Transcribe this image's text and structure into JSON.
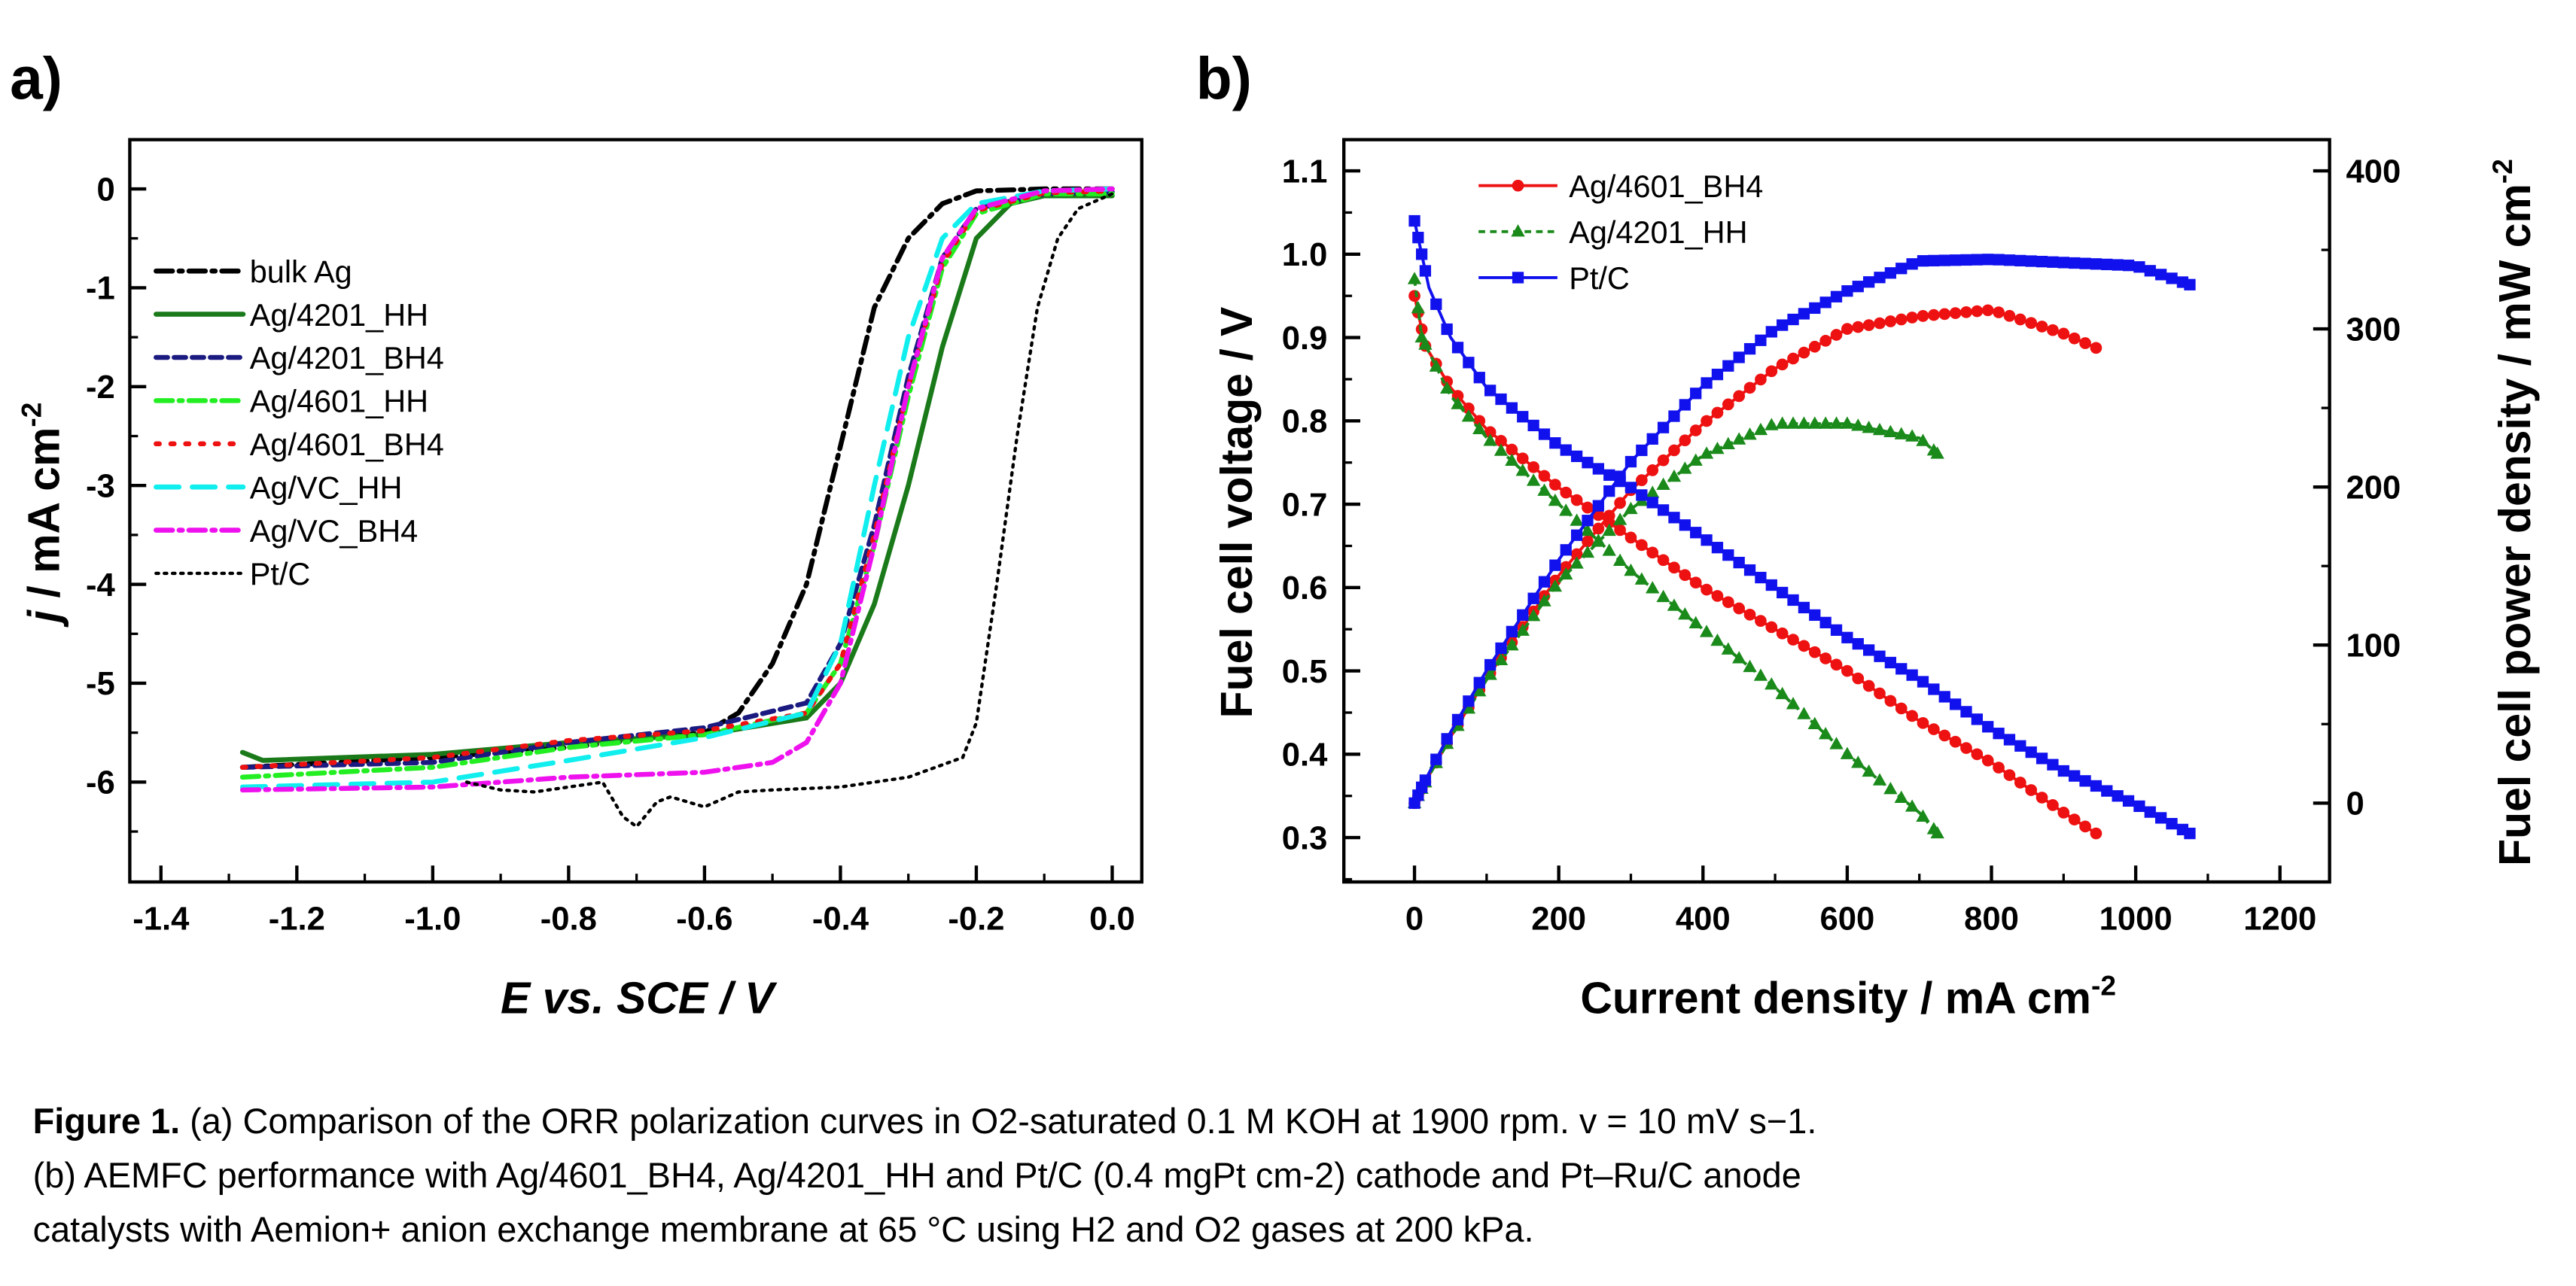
{
  "panels": {
    "a_label": "a)",
    "b_label": "b)"
  },
  "caption": {
    "fig_label": "Figure 1.",
    "line1": " (a) Comparison of the ORR polarization curves in O2-saturated 0.1 M KOH at 1900 rpm. v = 10 mV s−1.",
    "line2": "(b) AEMFC performance with Ag/4601_BH4, Ag/4201_HH and Pt/C (0.4 mgPt cm-2) cathode and Pt–Ru/C anode",
    "line3": "catalysts with Aemion+ anion exchange membrane at 65 °C using H2 and O2 gases at 200 kPa."
  },
  "chart_data": [
    {
      "type": "line",
      "panel": "a)",
      "xlabel": {
        "main": "E vs. SCE / V"
      },
      "ylabel": {
        "symbol": "j",
        "main": " / mA cm",
        "sup": "-2"
      },
      "xlim": [
        -1.45,
        0.04
      ],
      "ylim": [
        -7,
        0.5
      ],
      "xticks": [
        "-1.4",
        "-1.2",
        "-1.0",
        "-0.8",
        "-0.6",
        "-0.4",
        "-0.2",
        "0.0"
      ],
      "yticks": [
        "0",
        "-1",
        "-2",
        "-3",
        "-4",
        "-5",
        "-6"
      ],
      "legend_position": "left",
      "grid": false,
      "series": [
        {
          "name": "bulk Ag",
          "color": "#000000",
          "style": "dash-dot",
          "points": [
            [
              -1.28,
              -5.85
            ],
            [
              -1.0,
              -5.75
            ],
            [
              -0.8,
              -5.65
            ],
            [
              -0.6,
              -5.5
            ],
            [
              -0.55,
              -5.3
            ],
            [
              -0.5,
              -4.8
            ],
            [
              -0.45,
              -4.0
            ],
            [
              -0.4,
              -2.6
            ],
            [
              -0.35,
              -1.2
            ],
            [
              -0.3,
              -0.5
            ],
            [
              -0.25,
              -0.15
            ],
            [
              -0.2,
              -0.02
            ],
            [
              -0.1,
              0
            ],
            [
              0,
              0
            ]
          ]
        },
        {
          "name": "Ag/4201_HH",
          "color": "#1a7a1a",
          "style": "solid",
          "points": [
            [
              -1.28,
              -5.7
            ],
            [
              -1.25,
              -5.78
            ],
            [
              -1.0,
              -5.72
            ],
            [
              -0.8,
              -5.6
            ],
            [
              -0.6,
              -5.52
            ],
            [
              -0.45,
              -5.35
            ],
            [
              -0.4,
              -5.0
            ],
            [
              -0.35,
              -4.2
            ],
            [
              -0.3,
              -3.0
            ],
            [
              -0.25,
              -1.6
            ],
            [
              -0.2,
              -0.5
            ],
            [
              -0.15,
              -0.15
            ],
            [
              -0.1,
              -0.07
            ],
            [
              0,
              -0.07
            ]
          ]
        },
        {
          "name": "Ag/4201_BH4",
          "color": "#1a1a80",
          "style": "dash",
          "points": [
            [
              -1.28,
              -5.85
            ],
            [
              -1.0,
              -5.8
            ],
            [
              -0.8,
              -5.6
            ],
            [
              -0.6,
              -5.45
            ],
            [
              -0.45,
              -5.2
            ],
            [
              -0.4,
              -4.6
            ],
            [
              -0.35,
              -3.4
            ],
            [
              -0.3,
              -1.9
            ],
            [
              -0.25,
              -0.7
            ],
            [
              -0.2,
              -0.2
            ],
            [
              -0.1,
              -0.05
            ],
            [
              0,
              -0.03
            ]
          ]
        },
        {
          "name": "Ag/4601_HH",
          "color": "#22ee22",
          "style": "dash-dot",
          "points": [
            [
              -1.28,
              -5.95
            ],
            [
              -1.0,
              -5.85
            ],
            [
              -0.8,
              -5.65
            ],
            [
              -0.6,
              -5.52
            ],
            [
              -0.45,
              -5.3
            ],
            [
              -0.4,
              -4.8
            ],
            [
              -0.35,
              -3.6
            ],
            [
              -0.3,
              -2.1
            ],
            [
              -0.25,
              -0.8
            ],
            [
              -0.2,
              -0.25
            ],
            [
              -0.1,
              -0.05
            ],
            [
              0,
              -0.05
            ]
          ]
        },
        {
          "name": "Ag/4601_BH4",
          "color": "#ee1111",
          "style": "dot",
          "points": [
            [
              -1.28,
              -5.85
            ],
            [
              -1.0,
              -5.75
            ],
            [
              -0.8,
              -5.58
            ],
            [
              -0.6,
              -5.48
            ],
            [
              -0.45,
              -5.3
            ],
            [
              -0.4,
              -4.8
            ],
            [
              -0.35,
              -3.5
            ],
            [
              -0.3,
              -2.0
            ],
            [
              -0.25,
              -0.75
            ],
            [
              -0.2,
              -0.22
            ],
            [
              -0.1,
              -0.04
            ],
            [
              0,
              -0.02
            ]
          ]
        },
        {
          "name": "Ag/VC_HH",
          "color": "#11eeee",
          "style": "long-dash",
          "points": [
            [
              -1.28,
              -6.05
            ],
            [
              -1.0,
              -6.0
            ],
            [
              -0.8,
              -5.78
            ],
            [
              -0.6,
              -5.55
            ],
            [
              -0.45,
              -5.3
            ],
            [
              -0.4,
              -4.6
            ],
            [
              -0.35,
              -3.0
            ],
            [
              -0.3,
              -1.5
            ],
            [
              -0.25,
              -0.5
            ],
            [
              -0.2,
              -0.15
            ],
            [
              -0.1,
              -0.02
            ],
            [
              0,
              0
            ]
          ]
        },
        {
          "name": "Ag/VC_BH4",
          "color": "#ee11ee",
          "style": "dash-dot",
          "points": [
            [
              -1.28,
              -6.08
            ],
            [
              -1.0,
              -6.05
            ],
            [
              -0.8,
              -5.95
            ],
            [
              -0.6,
              -5.9
            ],
            [
              -0.5,
              -5.8
            ],
            [
              -0.45,
              -5.6
            ],
            [
              -0.4,
              -5.0
            ],
            [
              -0.35,
              -3.6
            ],
            [
              -0.3,
              -2.0
            ],
            [
              -0.25,
              -0.7
            ],
            [
              -0.2,
              -0.2
            ],
            [
              -0.1,
              -0.02
            ],
            [
              0,
              0
            ]
          ]
        },
        {
          "name": "Pt/C",
          "color": "#000000",
          "style": "fine-dot",
          "points": [
            [
              -0.95,
              -6.0
            ],
            [
              -0.9,
              -6.08
            ],
            [
              -0.85,
              -6.1
            ],
            [
              -0.8,
              -6.05
            ],
            [
              -0.75,
              -6.0
            ],
            [
              -0.72,
              -6.35
            ],
            [
              -0.7,
              -6.45
            ],
            [
              -0.67,
              -6.2
            ],
            [
              -0.65,
              -6.15
            ],
            [
              -0.6,
              -6.25
            ],
            [
              -0.55,
              -6.1
            ],
            [
              -0.5,
              -6.08
            ],
            [
              -0.4,
              -6.05
            ],
            [
              -0.3,
              -5.95
            ],
            [
              -0.22,
              -5.75
            ],
            [
              -0.2,
              -5.4
            ],
            [
              -0.17,
              -4.0
            ],
            [
              -0.14,
              -2.5
            ],
            [
              -0.11,
              -1.2
            ],
            [
              -0.08,
              -0.5
            ],
            [
              -0.05,
              -0.2
            ],
            [
              0,
              -0.05
            ]
          ]
        }
      ]
    },
    {
      "type": "line",
      "panel": "b)",
      "xlabel": {
        "main": "Current density / mA cm",
        "sup": "-2"
      },
      "ylabel_left": {
        "main": "Fuel cell voltage / V"
      },
      "ylabel_right": {
        "main": "Fuel cell power density / mW cm",
        "sup": "-2"
      },
      "xlim": [
        -98,
        1268
      ],
      "ylim_left": [
        0.247,
        1.137
      ],
      "ylim_right": [
        -50,
        420
      ],
      "xticks": [
        "0",
        "200",
        "400",
        "600",
        "800",
        "1000",
        "1200"
      ],
      "yticks_left": [
        "0.3",
        "0.4",
        "0.5",
        "0.6",
        "0.7",
        "0.8",
        "0.9",
        "1.0",
        "1.1"
      ],
      "yticks_right": [
        "0",
        "100",
        "200",
        "300",
        "400"
      ],
      "legend_position": "top-left",
      "grid": false,
      "series": [
        {
          "name": "Ag/4601_BH4",
          "color": "#ee1111",
          "marker": "circle",
          "line": "solid",
          "current": [
            0,
            15,
            50,
            100,
            200,
            300,
            400,
            500,
            600,
            700,
            800,
            900,
            945
          ],
          "voltage": [
            0.95,
            0.89,
            0.84,
            0.79,
            0.72,
            0.66,
            0.6,
            0.55,
            0.5,
            0.44,
            0.39,
            0.33,
            0.305
          ],
          "power": [
            0,
            13.4,
            42,
            79,
            144,
            198,
            240,
            275,
            300,
            308,
            312,
            297,
            288
          ]
        },
        {
          "name": "Ag/4201_HH",
          "color": "#1a8a1a",
          "marker": "triangle",
          "line": "dash",
          "current": [
            0,
            10,
            50,
            100,
            200,
            300,
            400,
            500,
            600,
            700,
            725
          ],
          "voltage": [
            0.97,
            0.9,
            0.83,
            0.78,
            0.7,
            0.62,
            0.55,
            0.48,
            0.4,
            0.33,
            0.305
          ],
          "power": [
            0,
            9,
            41.5,
            78,
            140,
            186,
            220,
            240,
            240,
            231,
            221
          ]
        },
        {
          "name": "Pt/C",
          "color": "#1111ee",
          "marker": "square",
          "line": "solid",
          "current": [
            0,
            10,
            20,
            50,
            100,
            200,
            300,
            400,
            500,
            600,
            700,
            800,
            900,
            1000,
            1075
          ],
          "voltage": [
            1.04,
            1.0,
            0.96,
            0.9,
            0.84,
            0.77,
            0.72,
            0.66,
            0.6,
            0.54,
            0.49,
            0.43,
            0.38,
            0.34,
            0.305
          ],
          "power": [
            0,
            10,
            19,
            45,
            84,
            154,
            216,
            264,
            300,
            324,
            343,
            344,
            342,
            340,
            328
          ]
        }
      ]
    }
  ]
}
